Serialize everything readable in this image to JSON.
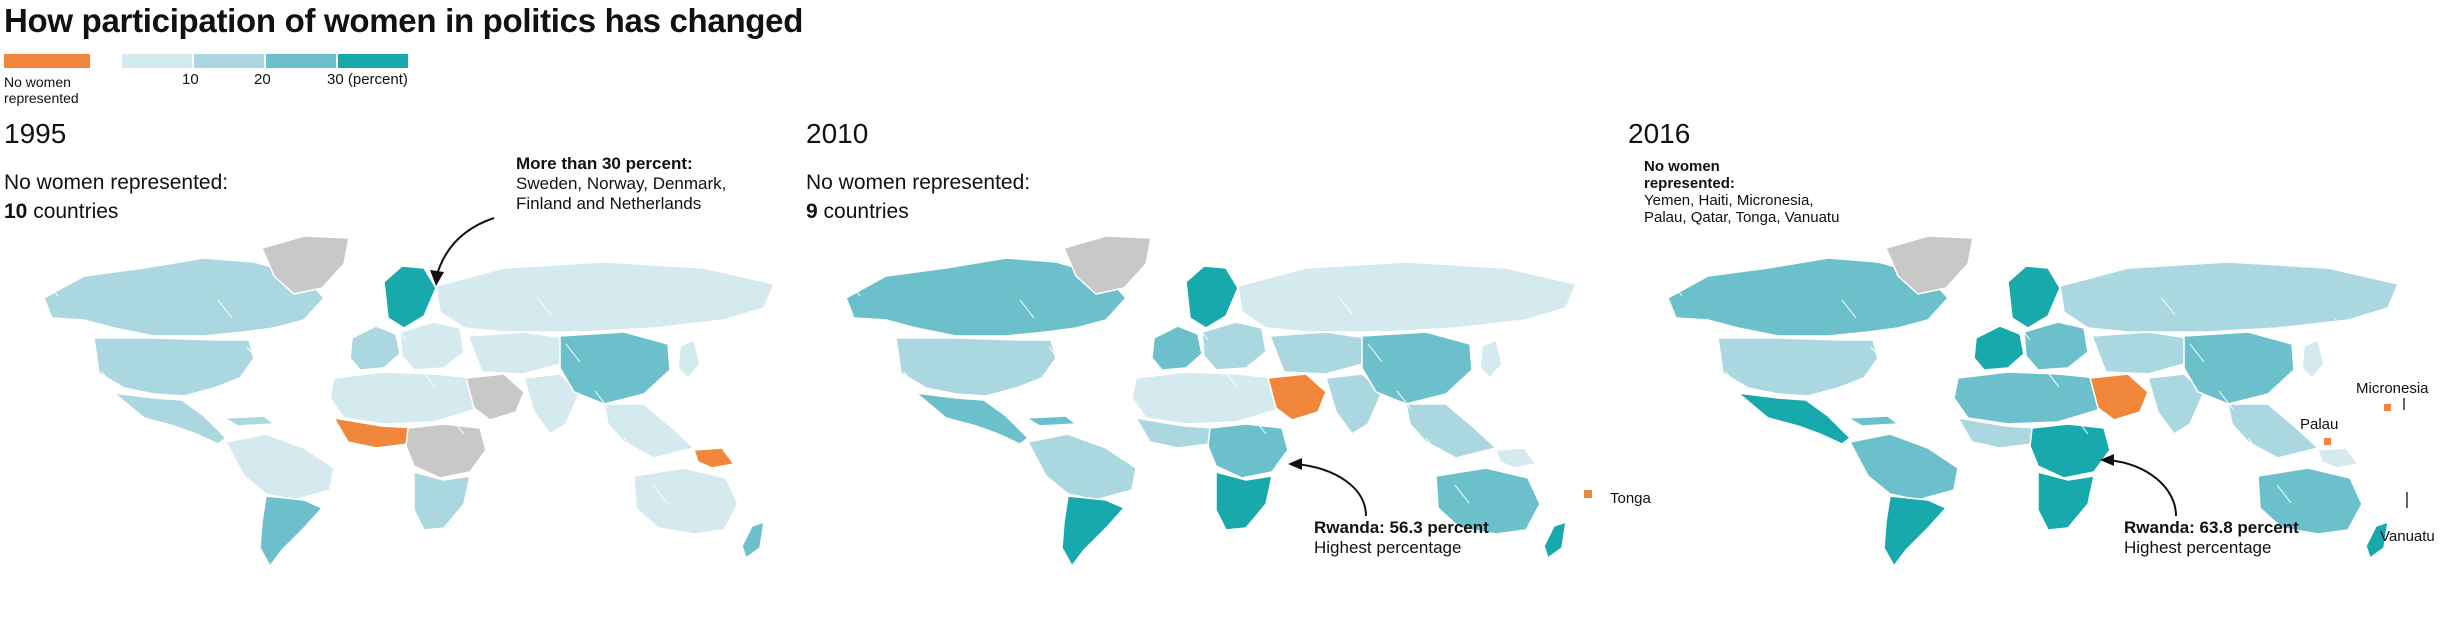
{
  "title": "How participation of women in politics has changed",
  "legend": {
    "no_women_label": "No women represented",
    "ticks": [
      "10",
      "20",
      "30 (percent)"
    ],
    "colors": {
      "no_women": "#f0873a",
      "c0_10": "#d4eaef",
      "c10_20": "#abd8e0",
      "c20_30": "#6cc0cb",
      "c30_plus": "#17a9ac",
      "no_data": "#c8c8c8"
    }
  },
  "panels": [
    {
      "year": "1995",
      "summary_label": "No women represented:",
      "summary_count": "10",
      "summary_unit": "countries",
      "annotation_head": "More than 30 percent:",
      "annotation_body": [
        "Sweden, Norway, Denmark,",
        "Finland and Netherlands"
      ]
    },
    {
      "year": "2010",
      "summary_label": "No women represented:",
      "summary_count": "9",
      "summary_unit": "countries",
      "annotation_head": "Rwanda: 56.3 percent",
      "annotation_body": "Highest percentage",
      "island_label": "Tonga"
    },
    {
      "year": "2016",
      "summary_head": [
        "No women",
        "represented:"
      ],
      "summary_body": [
        "Yemen, Haiti, Micronesia,",
        "Palau, Qatar, Tonga, Vanuatu"
      ],
      "annotation_head": "Rwanda: 63.8 percent",
      "annotation_body": "Highest percentage",
      "island_labels": [
        "Micronesia",
        "Palau",
        "Vanuatu"
      ]
    }
  ]
}
